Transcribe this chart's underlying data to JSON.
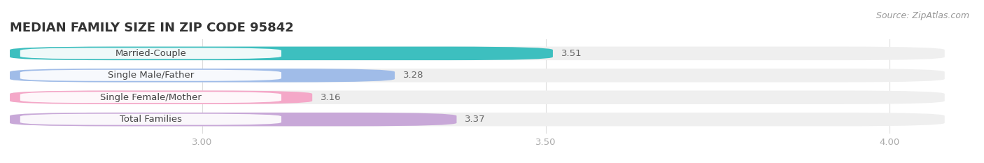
{
  "title": "MEDIAN FAMILY SIZE IN ZIP CODE 95842",
  "source": "Source: ZipAtlas.com",
  "categories": [
    "Married-Couple",
    "Single Male/Father",
    "Single Female/Mother",
    "Total Families"
  ],
  "values": [
    3.51,
    3.28,
    3.16,
    3.37
  ],
  "bar_colors": [
    "#3dbfbf",
    "#a0bce8",
    "#f4a8c8",
    "#c8a8d8"
  ],
  "bar_bg_color": "#efefef",
  "background_color": "#ffffff",
  "xlim": [
    2.72,
    4.08
  ],
  "xticks": [
    3.0,
    3.5,
    4.0
  ],
  "label_fontsize": 9.5,
  "value_fontsize": 9.5,
  "title_fontsize": 13,
  "source_fontsize": 9,
  "bar_height": 0.62,
  "label_color": "#444444",
  "value_color": "#666666",
  "tick_color": "#aaaaaa",
  "grid_color": "#dddddd",
  "title_color": "#333333",
  "pill_bg_color": "#ffffff",
  "pill_alpha": 0.92
}
